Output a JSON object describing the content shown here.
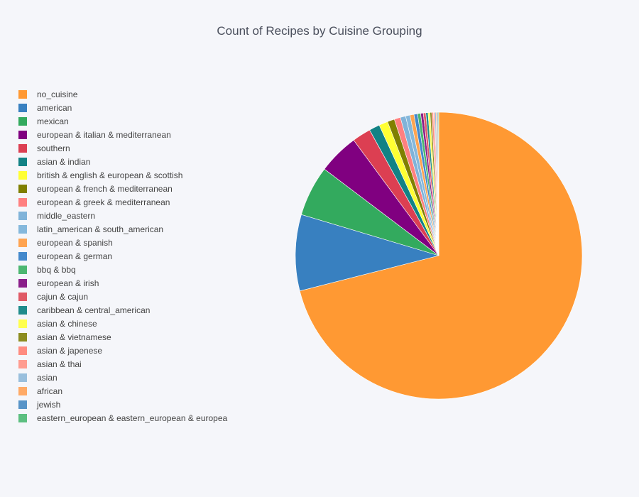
{
  "chart_data": {
    "type": "pie",
    "title": "Count of Recipes by Cuisine Grouping",
    "legend_position": "left",
    "slices": [
      {
        "label": "no_cuisine",
        "value": 71.2,
        "color": "#ff9933"
      },
      {
        "label": "american",
        "value": 8.6,
        "color": "#3880c0"
      },
      {
        "label": "mexican",
        "value": 5.7,
        "color": "#33aa5e"
      },
      {
        "label": "european & italian & mediterranean",
        "value": 4.6,
        "color": "#800080"
      },
      {
        "label": "southern",
        "value": 2.1,
        "color": "#dc3f52"
      },
      {
        "label": "asian & indian",
        "value": 1.2,
        "color": "#128285"
      },
      {
        "label": "british & english & european & scottish",
        "value": 1.0,
        "color": "#ffff33"
      },
      {
        "label": "european & french & mediterranean",
        "value": 0.8,
        "color": "#808000"
      },
      {
        "label": "european & greek & mediterranean",
        "value": 0.7,
        "color": "#ff8080"
      },
      {
        "label": "middle_eastern",
        "value": 0.6,
        "color": "#80b3d9"
      },
      {
        "label": "latin_american & south_american",
        "value": 0.5,
        "color": "#85b8dc"
      },
      {
        "label": "european & spanish",
        "value": 0.45,
        "color": "#ffa451"
      },
      {
        "label": "european & german",
        "value": 0.4,
        "color": "#4489cc"
      },
      {
        "label": "bbq & bbq",
        "value": 0.35,
        "color": "#4cb771"
      },
      {
        "label": "european & irish",
        "value": 0.3,
        "color": "#8a1f8a"
      },
      {
        "label": "cajun & cajun",
        "value": 0.28,
        "color": "#e05a66"
      },
      {
        "label": "caribbean & central_american",
        "value": 0.25,
        "color": "#1f8c8c"
      },
      {
        "label": "asian & chinese",
        "value": 0.22,
        "color": "#ffff4d"
      },
      {
        "label": "asian & vietnamese",
        "value": 0.2,
        "color": "#8c8c1f"
      },
      {
        "label": "asian & japenese",
        "value": 0.18,
        "color": "#ff8c80"
      },
      {
        "label": "asian & thai",
        "value": 0.16,
        "color": "#ff9c90"
      },
      {
        "label": "asian",
        "value": 0.14,
        "color": "#99bfdd"
      },
      {
        "label": "african",
        "value": 0.12,
        "color": "#ffaa66"
      },
      {
        "label": "jewish",
        "value": 0.1,
        "color": "#5894c8"
      },
      {
        "label": "eastern_european & eastern_european & europea",
        "value": 0.08,
        "color": "#5cbf80"
      }
    ]
  }
}
